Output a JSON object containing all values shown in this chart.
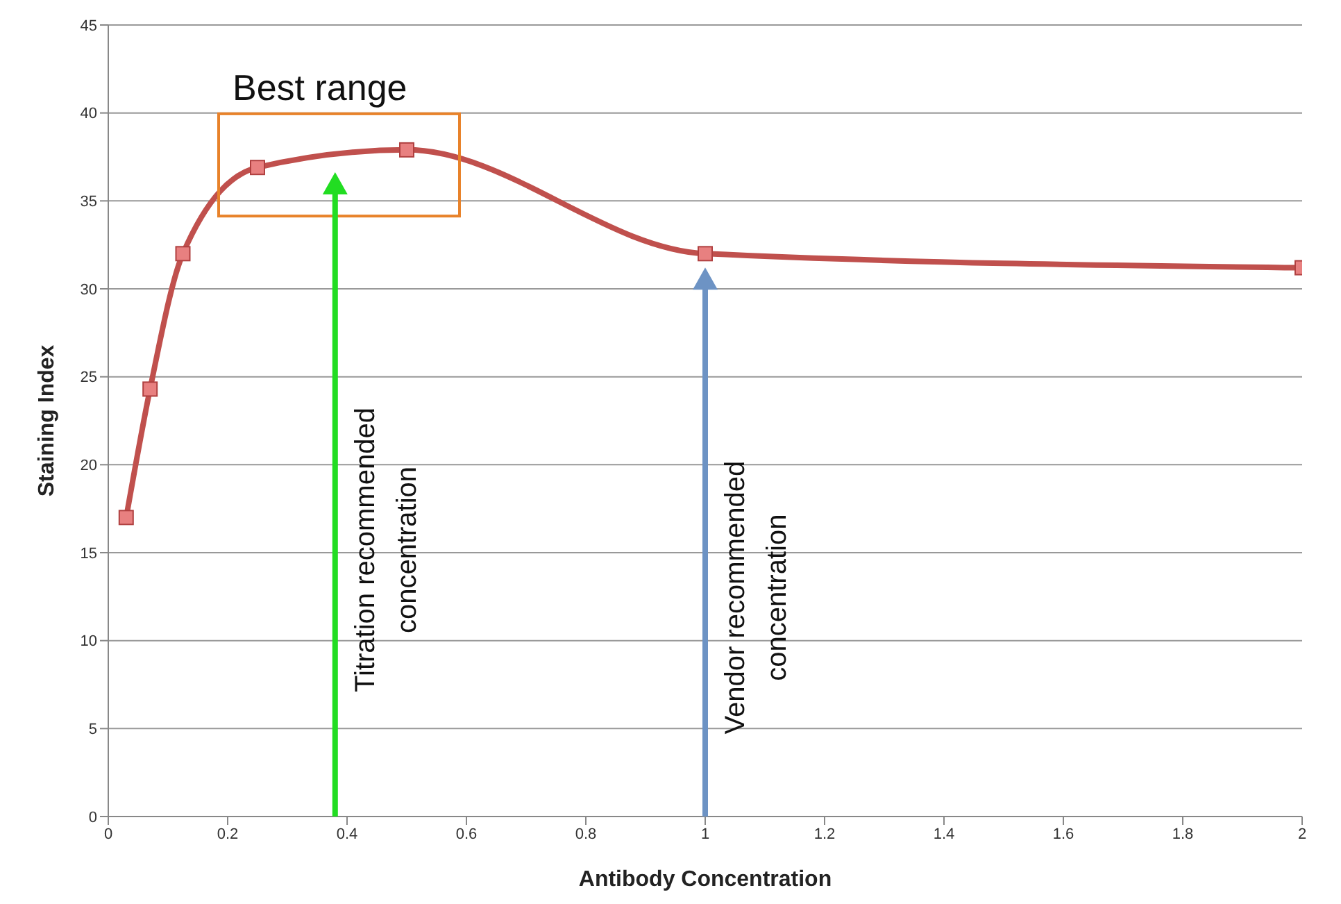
{
  "chart_data": {
    "type": "line",
    "xlabel": "Antibody Concentration",
    "ylabel": "Staining Index",
    "x": [
      0.03,
      0.07,
      0.125,
      0.25,
      0.5,
      1,
      2
    ],
    "series": [
      {
        "color": "#c0504d",
        "values": [
          17,
          24.3,
          32,
          36.9,
          37.9,
          32,
          31.2
        ]
      }
    ],
    "xlim": [
      0,
      2
    ],
    "xticks": [
      0,
      0.2,
      0.4,
      0.6,
      0.8,
      1,
      1.2,
      1.4,
      1.6,
      1.8,
      2
    ],
    "ylim": [
      0,
      45
    ],
    "yticks": [
      0,
      5,
      10,
      15,
      20,
      25,
      30,
      35,
      40,
      45
    ],
    "grid": "y",
    "marker": "square",
    "line_style": "solid",
    "ref_lines": [
      {
        "axis": "x",
        "value": 0.38,
        "label": "Titration recommended concentration",
        "color": "#22dd22"
      },
      {
        "axis": "x",
        "value": 1,
        "label": "Vendor recommended concentration",
        "color": "#6d93c4"
      }
    ],
    "annotations": [
      "Best range"
    ]
  }
}
